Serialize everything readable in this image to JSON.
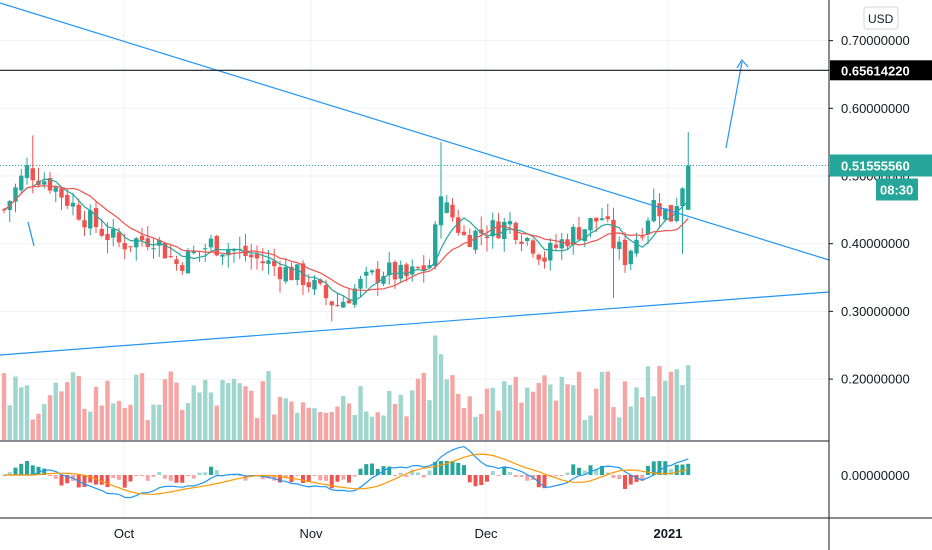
{
  "currency": "USD",
  "chart_data": {
    "type": "candlestick",
    "x_labels": [
      "Oct",
      "Nov",
      "Dec",
      "2021"
    ],
    "y_ticks": [
      {
        "value": 0.7,
        "label": "0.70000000"
      },
      {
        "value": 0.6,
        "label": "0.60000000"
      },
      {
        "value": 0.5,
        "label": "0.50000000"
      },
      {
        "value": 0.4,
        "label": "0.40000000"
      },
      {
        "value": 0.3,
        "label": "0.30000000"
      },
      {
        "value": 0.2,
        "label": "0.20000000"
      }
    ],
    "ylim": [
      0.11,
      0.76
    ],
    "target_line": {
      "value": 0.6561422,
      "label": "0.65614220"
    },
    "last_price": {
      "value": 0.5155556,
      "label": "0.51555560"
    },
    "countdown": "08:30",
    "macd_zero_label": "0.00000000",
    "last_close": 0.5155556,
    "series_closes_approx": [
      0.47,
      0.51,
      0.49,
      0.46,
      0.42,
      0.4,
      0.38,
      0.37,
      0.35,
      0.33,
      0.31,
      0.34,
      0.36,
      0.35,
      0.38,
      0.45,
      0.42,
      0.41,
      0.42,
      0.4,
      0.39,
      0.41,
      0.43,
      0.44,
      0.45,
      0.47,
      0.5156
    ]
  },
  "colors": {
    "up": "#26a69a",
    "down": "#ef5350",
    "up_volume": "#9fd6ce",
    "down_volume": "#f5a5a4",
    "trendline": "#2196f3",
    "ma_green": "#26a69a",
    "ma_red": "#ef5350",
    "macd_blue": "#2196f3",
    "macd_orange": "#ff9800",
    "axis_bg": "#ffffff",
    "grid": "#eef0f3",
    "price_tag": "#26a69a",
    "target_tag": "#000000"
  }
}
